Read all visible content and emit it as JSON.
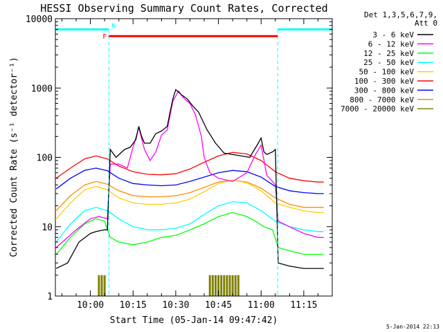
{
  "chart_data": {
    "type": "line",
    "title": "HESSI Observing Summary Count Rates, Corrected",
    "xlabel": "Start Time (05-Jan-14 09:47:42)",
    "ylabel": "Corrected Count Rate (s⁻¹ detector⁻¹)",
    "yscale": "log",
    "ylim": [
      1,
      10000
    ],
    "xlim": [
      "09:47:42",
      "11:25:00"
    ],
    "x_ticks": [
      "10:00",
      "10:15",
      "10:30",
      "10:45",
      "11:00",
      "11:15"
    ],
    "y_ticks": [
      "1",
      "10",
      "100",
      "1000",
      "10000"
    ],
    "grid": false,
    "legend_position": "right",
    "legend_header": [
      "Det 1,3,5,6,7,9,",
      "Att 0"
    ],
    "footer_date": "5-Jan-2014 22:13",
    "flags": [
      {
        "label": "N",
        "color": "#00ffff",
        "note": "night intervals",
        "segments": [
          [
            "09:47:42",
            "10:06:30"
          ],
          [
            "11:05:50",
            "11:25:00"
          ]
        ],
        "level": 7000
      },
      {
        "label": "F",
        "color": "#ff0000",
        "note": "flare interval",
        "segments": [
          [
            "10:06:30",
            "11:05:50"
          ]
        ],
        "level": 5600
      }
    ],
    "series": [
      {
        "name": "3 - 6 keV",
        "color": "#000000",
        "points": [
          [
            "09:48",
            2.5
          ],
          [
            "09:52",
            3
          ],
          [
            "09:56",
            6
          ],
          [
            "10:00",
            8
          ],
          [
            "10:02",
            8.5
          ],
          [
            "10:05",
            9
          ],
          [
            "10:06",
            9
          ],
          [
            "10:07",
            130
          ],
          [
            "10:09",
            100
          ],
          [
            "10:12",
            130
          ],
          [
            "10:14",
            140
          ],
          [
            "10:16",
            180
          ],
          [
            "10:17",
            280
          ],
          [
            "10:18",
            200
          ],
          [
            "10:19",
            160
          ],
          [
            "10:21",
            160
          ],
          [
            "10:23",
            220
          ],
          [
            "10:25",
            240
          ],
          [
            "10:27",
            280
          ],
          [
            "10:28",
            450
          ],
          [
            "10:29",
            700
          ],
          [
            "10:30",
            950
          ],
          [
            "10:32",
            800
          ],
          [
            "10:34",
            700
          ],
          [
            "10:36",
            550
          ],
          [
            "10:38",
            450
          ],
          [
            "10:41",
            250
          ],
          [
            "10:44",
            160
          ],
          [
            "10:47",
            115
          ],
          [
            "10:50",
            110
          ],
          [
            "10:53",
            105
          ],
          [
            "10:56",
            100
          ],
          [
            "10:59",
            160
          ],
          [
            "11:00",
            190
          ],
          [
            "11:01",
            120
          ],
          [
            "11:02",
            110
          ],
          [
            "11:04",
            120
          ],
          [
            "11:05",
            130
          ],
          [
            "11:06",
            3
          ],
          [
            "11:10",
            2.7
          ],
          [
            "11:15",
            2.5
          ],
          [
            "11:20",
            2.5
          ],
          [
            "11:22",
            2.5
          ]
        ]
      },
      {
        "name": "6 - 12 keV",
        "color": "#ff00ff",
        "points": [
          [
            "09:48",
            5
          ],
          [
            "09:55",
            9
          ],
          [
            "10:00",
            13
          ],
          [
            "10:03",
            14
          ],
          [
            "10:06",
            13
          ],
          [
            "10:07",
            80
          ],
          [
            "10:10",
            80
          ],
          [
            "10:13",
            70
          ],
          [
            "10:15",
            140
          ],
          [
            "10:17",
            270
          ],
          [
            "10:19",
            130
          ],
          [
            "10:21",
            90
          ],
          [
            "10:23",
            120
          ],
          [
            "10:25",
            210
          ],
          [
            "10:27",
            250
          ],
          [
            "10:29",
            650
          ],
          [
            "10:31",
            900
          ],
          [
            "10:33",
            700
          ],
          [
            "10:35",
            600
          ],
          [
            "10:37",
            400
          ],
          [
            "10:39",
            200
          ],
          [
            "10:40",
            100
          ],
          [
            "10:42",
            60
          ],
          [
            "10:45",
            50
          ],
          [
            "10:50",
            45
          ],
          [
            "10:55",
            60
          ],
          [
            "10:58",
            110
          ],
          [
            "11:00",
            150
          ],
          [
            "11:02",
            55
          ],
          [
            "11:04",
            45
          ],
          [
            "11:05",
            40
          ],
          [
            "11:06",
            12
          ],
          [
            "11:10",
            10
          ],
          [
            "11:15",
            8
          ],
          [
            "11:20",
            7
          ],
          [
            "11:22",
            7
          ]
        ]
      },
      {
        "name": "12 - 25 keV",
        "color": "#00ff00",
        "points": [
          [
            "09:48",
            4
          ],
          [
            "09:53",
            7
          ],
          [
            "09:58",
            11
          ],
          [
            "10:02",
            13
          ],
          [
            "10:05",
            12
          ],
          [
            "10:07",
            7
          ],
          [
            "10:10",
            6
          ],
          [
            "10:15",
            5.5
          ],
          [
            "10:20",
            6
          ],
          [
            "10:25",
            7
          ],
          [
            "10:30",
            7.5
          ],
          [
            "10:35",
            9
          ],
          [
            "10:40",
            11
          ],
          [
            "10:45",
            14
          ],
          [
            "10:50",
            16
          ],
          [
            "10:55",
            14
          ],
          [
            "10:58",
            12
          ],
          [
            "11:01",
            10
          ],
          [
            "11:04",
            9
          ],
          [
            "11:06",
            5
          ],
          [
            "11:10",
            4.5
          ],
          [
            "11:15",
            4
          ],
          [
            "11:20",
            4
          ],
          [
            "11:22",
            4
          ]
        ]
      },
      {
        "name": "25 - 50 keV",
        "color": "#00ffff",
        "points": [
          [
            "09:48",
            6
          ],
          [
            "09:53",
            11
          ],
          [
            "09:58",
            17
          ],
          [
            "10:02",
            19
          ],
          [
            "10:06",
            17
          ],
          [
            "10:10",
            13
          ],
          [
            "10:15",
            10
          ],
          [
            "10:20",
            9
          ],
          [
            "10:25",
            9
          ],
          [
            "10:30",
            9.5
          ],
          [
            "10:35",
            11
          ],
          [
            "10:40",
            15
          ],
          [
            "10:45",
            20
          ],
          [
            "10:50",
            23
          ],
          [
            "10:55",
            22
          ],
          [
            "11:00",
            17
          ],
          [
            "11:05",
            12
          ],
          [
            "11:10",
            10
          ],
          [
            "11:15",
            9
          ],
          [
            "11:20",
            8.5
          ],
          [
            "11:22",
            8.5
          ]
        ]
      },
      {
        "name": "50 - 100 keV",
        "color": "#ffcc00",
        "points": [
          [
            "09:48",
            13
          ],
          [
            "09:53",
            22
          ],
          [
            "09:58",
            34
          ],
          [
            "10:02",
            38
          ],
          [
            "10:06",
            34
          ],
          [
            "10:10",
            26
          ],
          [
            "10:15",
            22
          ],
          [
            "10:20",
            21
          ],
          [
            "10:25",
            21
          ],
          [
            "10:30",
            22
          ],
          [
            "10:35",
            25
          ],
          [
            "10:40",
            32
          ],
          [
            "10:45",
            42
          ],
          [
            "10:50",
            47
          ],
          [
            "10:55",
            43
          ],
          [
            "11:00",
            33
          ],
          [
            "11:05",
            22
          ],
          [
            "11:10",
            19
          ],
          [
            "11:15",
            17
          ],
          [
            "11:20",
            16
          ],
          [
            "11:22",
            16
          ]
        ]
      },
      {
        "name": "100 - 300 keV",
        "color": "#ff0000",
        "points": [
          [
            "09:48",
            50
          ],
          [
            "09:53",
            70
          ],
          [
            "09:58",
            95
          ],
          [
            "10:02",
            105
          ],
          [
            "10:06",
            95
          ],
          [
            "10:10",
            75
          ],
          [
            "10:15",
            62
          ],
          [
            "10:20",
            57
          ],
          [
            "10:25",
            56
          ],
          [
            "10:30",
            58
          ],
          [
            "10:35",
            68
          ],
          [
            "10:40",
            85
          ],
          [
            "10:45",
            105
          ],
          [
            "10:50",
            118
          ],
          [
            "10:55",
            112
          ],
          [
            "11:00",
            90
          ],
          [
            "11:05",
            62
          ],
          [
            "11:10",
            50
          ],
          [
            "11:15",
            46
          ],
          [
            "11:20",
            44
          ],
          [
            "11:22",
            44
          ]
        ]
      },
      {
        "name": "300 - 800 keV",
        "color": "#0000ff",
        "points": [
          [
            "09:48",
            35
          ],
          [
            "09:53",
            50
          ],
          [
            "09:58",
            65
          ],
          [
            "10:02",
            70
          ],
          [
            "10:06",
            64
          ],
          [
            "10:10",
            50
          ],
          [
            "10:15",
            42
          ],
          [
            "10:20",
            40
          ],
          [
            "10:25",
            39
          ],
          [
            "10:30",
            40
          ],
          [
            "10:35",
            45
          ],
          [
            "10:40",
            52
          ],
          [
            "10:45",
            60
          ],
          [
            "10:50",
            65
          ],
          [
            "10:55",
            62
          ],
          [
            "11:00",
            52
          ],
          [
            "11:05",
            38
          ],
          [
            "11:10",
            33
          ],
          [
            "11:15",
            31
          ],
          [
            "11:20",
            30
          ],
          [
            "11:22",
            30
          ]
        ]
      },
      {
        "name": "800 - 7000 keV",
        "color": "#ff8800",
        "points": [
          [
            "09:48",
            17
          ],
          [
            "09:53",
            28
          ],
          [
            "09:58",
            40
          ],
          [
            "10:02",
            45
          ],
          [
            "10:06",
            41
          ],
          [
            "10:10",
            33
          ],
          [
            "10:15",
            28
          ],
          [
            "10:20",
            27
          ],
          [
            "10:25",
            27
          ],
          [
            "10:30",
            28
          ],
          [
            "10:35",
            31
          ],
          [
            "10:40",
            37
          ],
          [
            "10:45",
            44
          ],
          [
            "10:50",
            47
          ],
          [
            "10:55",
            44
          ],
          [
            "11:00",
            36
          ],
          [
            "11:05",
            26
          ],
          [
            "11:10",
            21
          ],
          [
            "11:15",
            19
          ],
          [
            "11:20",
            19
          ],
          [
            "11:22",
            19
          ]
        ]
      },
      {
        "name": "7000 - 20000 keV",
        "color": "#808000",
        "bursts": [
          [
            "10:03",
            1,
            2
          ],
          [
            "10:04",
            1,
            2
          ],
          [
            "10:05",
            1,
            2
          ],
          [
            "10:42",
            1,
            2
          ],
          [
            "10:43",
            1,
            2
          ],
          [
            "10:44",
            1,
            2
          ],
          [
            "10:45",
            1,
            2
          ],
          [
            "10:46",
            1,
            2
          ],
          [
            "10:47",
            1,
            2
          ],
          [
            "10:48",
            1,
            2
          ],
          [
            "10:49",
            1,
            2
          ],
          [
            "10:50",
            1,
            2
          ],
          [
            "10:51",
            1,
            2
          ],
          [
            "10:52",
            1,
            2
          ]
        ]
      }
    ]
  }
}
